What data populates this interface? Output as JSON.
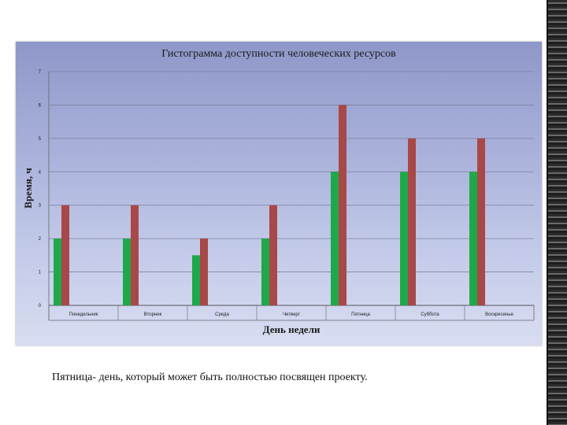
{
  "chart_data": {
    "type": "bar",
    "title": "Гистограмма доступности человеческих ресурсов",
    "xlabel": "День недели",
    "ylabel": "Время, ч",
    "ylim": [
      0,
      7
    ],
    "yticks": [
      0,
      1,
      2,
      3,
      4,
      5,
      6,
      7
    ],
    "grid": true,
    "categories": [
      "Понедельник",
      "Вторник",
      "Среда",
      "Четверг",
      "Пятница",
      "Суббота",
      "Воскресенье"
    ],
    "series": [
      {
        "values": [
          2,
          2,
          1.5,
          2,
          4,
          4,
          4
        ],
        "color": "#1ea84a"
      },
      {
        "values": [
          3,
          3,
          2,
          3,
          6,
          5,
          5
        ],
        "color": "#a84848"
      }
    ]
  },
  "caption": "Пятница- день, который может быть полностью посвящен проекту."
}
